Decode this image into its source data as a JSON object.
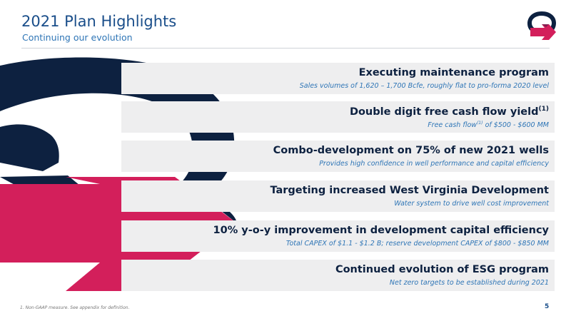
{
  "header": {
    "title": "2021 Plan Highlights",
    "subtitle": "Continuing our evolution"
  },
  "colors": {
    "navy": "#0d2140",
    "magenta": "#d31f5b",
    "title_blue": "#1a4e8a",
    "accent_blue": "#2e75b6",
    "band_gray": "#eeeeef"
  },
  "logo": {
    "icon": "q-arrow-logo-icon"
  },
  "highlights": [
    {
      "heading": "Executing maintenance program",
      "sub": "Sales volumes of 1,620 – 1,700 Bcfe, roughly flat to pro-forma 2020 level"
    },
    {
      "heading": "Double digit free cash flow yield",
      "heading_sup": "(1)",
      "sub_pre": "Free cash flow",
      "sub_sup": "(1)",
      "sub_post": " of $500 - $600 MM"
    },
    {
      "heading": "Combo-development on 75% of new 2021 wells",
      "sub": "Provides high confidence in well performance and capital efficiency"
    },
    {
      "heading": "Targeting increased West Virginia Development",
      "sub": "Water system to drive well cost improvement"
    },
    {
      "heading": "10% y-o-y improvement in development capital efficiency",
      "sub": "Total CAPEX of $1.1 - $1.2 B; reserve development CAPEX of $800 - $850 MM"
    },
    {
      "heading": "Continued evolution of ESG program",
      "sub": "Net zero targets to be established during 2021"
    }
  ],
  "footer": {
    "footnote": "1.     Non-GAAP measure. See appendix for definition.",
    "page_number": "5"
  }
}
